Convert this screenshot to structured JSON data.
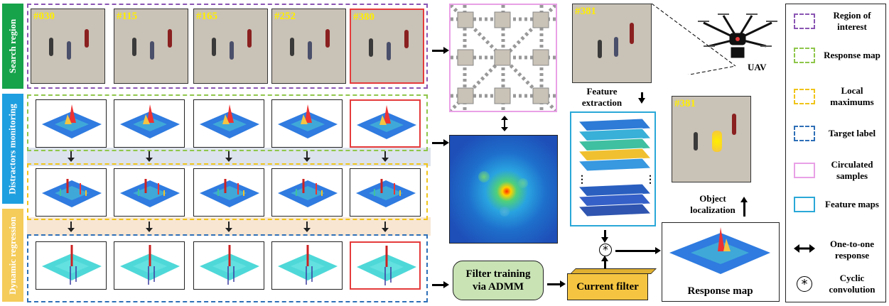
{
  "sidebar": {
    "search_region": "Search region",
    "distractors_monitoring": "Distractors monitoring",
    "dynamic_regression": "Dynamic regression"
  },
  "frames": [
    "#030",
    "#115",
    "#165",
    "#252",
    "#380"
  ],
  "current_frame": "#381",
  "labels": {
    "feature_extraction": "Feature extraction",
    "uav": "UAV",
    "object_localization": "Object localization",
    "filter_training": "Filter training via ADMM",
    "current_filter": "Current filter",
    "response_map": "Response map",
    "cyclic_symbol": "*"
  },
  "legend": [
    {
      "label": "Region of interest",
      "color": "#8a55b3",
      "style": "dashed"
    },
    {
      "label": "Response map",
      "color": "#8fc64a",
      "style": "dashed"
    },
    {
      "label": "Local maximums",
      "color": "#f0c419",
      "style": "dashed"
    },
    {
      "label": "Target label",
      "color": "#2e6fb7",
      "style": "dashed"
    },
    {
      "label": "Circulated samples",
      "color": "#e9a0e6",
      "style": "solid"
    },
    {
      "label": "Feature maps",
      "color": "#2aa8d8",
      "style": "solid"
    },
    {
      "label": "One-to-one response",
      "icon": "double-arrow-icon"
    },
    {
      "label": "Cyclic convolution",
      "icon": "cyclic-convolution-icon"
    }
  ],
  "colors": {
    "search_bar": "#16a34a",
    "distractor_bar": "#1e9fe0",
    "dynamic_bar": "#f5cc5a",
    "frame_yellow": "#ffee00",
    "filter_training_fill": "#c9e3b5",
    "current_filter_fill": "#f5c542",
    "highlight_red": "#e53b3b"
  }
}
